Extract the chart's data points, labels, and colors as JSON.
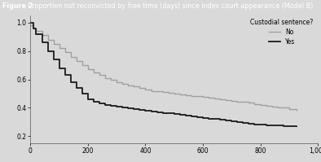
{
  "title_bold": "Figure 2",
  "title_normal": " Proportion not reconvicted by free time (days) since index court appearance (Model B)",
  "xlim": [
    0,
    1000
  ],
  "ylim": [
    0.15,
    1.05
  ],
  "yticks": [
    0.2,
    0.4,
    0.6,
    0.8,
    1.0
  ],
  "xticks": [
    0,
    200,
    400,
    600,
    800,
    1000
  ],
  "xticklabels": [
    "0",
    "200",
    "400",
    "600",
    "800",
    "1,000"
  ],
  "yticklabels": [
    "0.2",
    "0.4",
    "0.6",
    "0.8",
    "1.0"
  ],
  "legend_title": "Custodial sentence?",
  "legend_no_label": "No",
  "legend_yes_label": "Yes",
  "color_no": "#a0a0a0",
  "color_yes": "#1a1a1a",
  "background_color": "#d9d9d9",
  "header_bg": "#1a1a1a",
  "header_text_color": "#ffffff",
  "header_bold_color": "#ffffff",
  "no_x": [
    0,
    10,
    20,
    40,
    60,
    80,
    100,
    120,
    140,
    160,
    180,
    200,
    220,
    240,
    260,
    280,
    300,
    320,
    340,
    360,
    380,
    400,
    420,
    440,
    460,
    480,
    500,
    520,
    540,
    560,
    580,
    600,
    620,
    640,
    660,
    680,
    700,
    720,
    740,
    760,
    780,
    800,
    820,
    840,
    860,
    880,
    900,
    925
  ],
  "no_y": [
    0.98,
    0.96,
    0.94,
    0.91,
    0.88,
    0.85,
    0.82,
    0.79,
    0.76,
    0.73,
    0.7,
    0.67,
    0.65,
    0.63,
    0.61,
    0.6,
    0.58,
    0.57,
    0.56,
    0.55,
    0.54,
    0.53,
    0.52,
    0.515,
    0.51,
    0.505,
    0.5,
    0.495,
    0.49,
    0.485,
    0.48,
    0.475,
    0.47,
    0.465,
    0.46,
    0.455,
    0.45,
    0.445,
    0.44,
    0.435,
    0.425,
    0.42,
    0.415,
    0.41,
    0.405,
    0.4,
    0.39,
    0.38
  ],
  "yes_x": [
    0,
    10,
    20,
    40,
    60,
    80,
    100,
    120,
    140,
    160,
    180,
    200,
    220,
    240,
    260,
    280,
    300,
    320,
    340,
    360,
    380,
    400,
    420,
    440,
    460,
    480,
    500,
    520,
    540,
    560,
    580,
    600,
    620,
    640,
    660,
    680,
    700,
    720,
    740,
    760,
    780,
    800,
    820,
    840,
    860,
    880,
    900,
    925
  ],
  "yes_y": [
    1.0,
    0.96,
    0.92,
    0.86,
    0.8,
    0.74,
    0.68,
    0.63,
    0.58,
    0.54,
    0.5,
    0.46,
    0.44,
    0.43,
    0.42,
    0.415,
    0.41,
    0.4,
    0.395,
    0.39,
    0.385,
    0.38,
    0.375,
    0.37,
    0.365,
    0.36,
    0.355,
    0.35,
    0.345,
    0.34,
    0.335,
    0.33,
    0.325,
    0.32,
    0.315,
    0.31,
    0.305,
    0.3,
    0.295,
    0.29,
    0.285,
    0.28,
    0.278,
    0.276,
    0.274,
    0.272,
    0.27,
    0.268
  ]
}
